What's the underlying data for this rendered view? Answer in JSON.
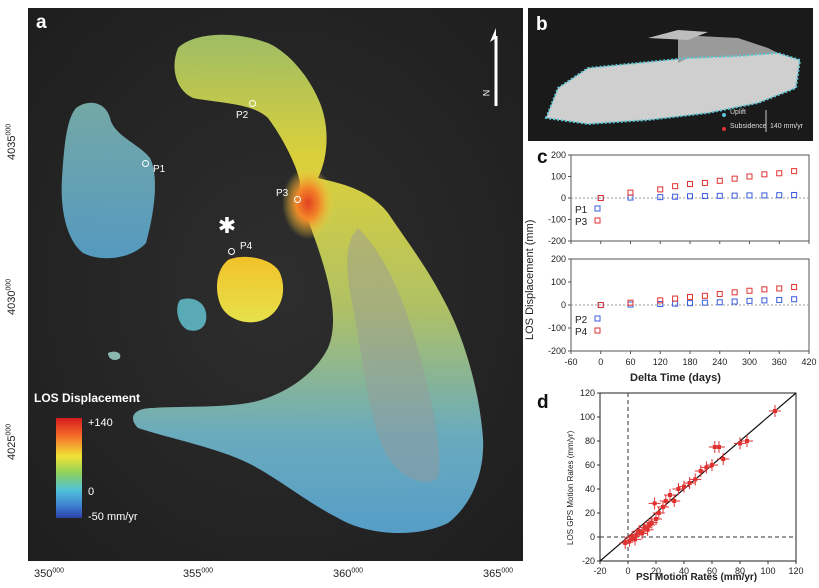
{
  "panel_a": {
    "letter": "a",
    "points": {
      "p1": "P1",
      "p2": "P2",
      "p3": "P3",
      "p4": "P4"
    },
    "north_label": "N",
    "colorbar": {
      "title": "LOS Displacement",
      "max": "+140",
      "zero": "0",
      "min": "-50 mm/yr"
    },
    "x_ticks": [
      {
        "main": "350",
        "sup": "000"
      },
      {
        "main": "355",
        "sup": "000"
      },
      {
        "main": "360",
        "sup": "000"
      },
      {
        "main": "365",
        "sup": "000"
      }
    ],
    "y_ticks": [
      {
        "main": "4035",
        "sup": "000"
      },
      {
        "main": "4030",
        "sup": "000"
      },
      {
        "main": "4025",
        "sup": "000"
      }
    ],
    "colors": {
      "uplift_high": "#d7301f",
      "mid": "#f2d300",
      "low": "#4aa3d6",
      "background": "#2b2b2b"
    }
  },
  "panel_b": {
    "letter": "b",
    "legend_uplift": "Uplift",
    "legend_subsidence": "Subsidence",
    "scale_label": "140 mm/yr"
  },
  "panel_c": {
    "letter": "c",
    "ylabel": "LOS Displacement (mm)",
    "xlabel": "Delta Time (days)",
    "legend_top": [
      "P1",
      "P3"
    ],
    "legend_bottom": [
      "P2",
      "P4"
    ]
  },
  "panel_d": {
    "letter": "d",
    "ylabel": "LOS GPS Motion Rates (mm/yr)",
    "xlabel": "PSI Motion Rates (mm/yr)"
  },
  "chart_data": [
    {
      "type": "scatter",
      "name": "panel-c-top",
      "x_ticks": [
        -60,
        0,
        60,
        120,
        180,
        240,
        300,
        360,
        420
      ],
      "y_ticks": [
        -200,
        -100,
        0,
        100,
        200
      ],
      "xlim": [
        -60,
        420
      ],
      "ylim": [
        -200,
        200
      ],
      "series": [
        {
          "name": "P1",
          "color": "#3b5bdb",
          "x": [
            0,
            60,
            120,
            150,
            180,
            210,
            240,
            270,
            300,
            330,
            360,
            390
          ],
          "y": [
            0,
            2,
            4,
            6,
            8,
            9,
            10,
            11,
            12,
            12,
            13,
            14
          ]
        },
        {
          "name": "P3",
          "color": "#e03131",
          "x": [
            0,
            60,
            120,
            150,
            180,
            210,
            240,
            270,
            300,
            330,
            360,
            390
          ],
          "y": [
            0,
            25,
            40,
            55,
            65,
            70,
            80,
            90,
            100,
            110,
            115,
            125
          ]
        }
      ]
    },
    {
      "type": "scatter",
      "name": "panel-c-bottom",
      "x_ticks": [
        -60,
        0,
        60,
        120,
        180,
        240,
        300,
        360,
        420
      ],
      "y_ticks": [
        -200,
        -100,
        0,
        100,
        200
      ],
      "xlim": [
        -60,
        420
      ],
      "ylim": [
        -200,
        200
      ],
      "series": [
        {
          "name": "P2",
          "color": "#3b5bdb",
          "x": [
            0,
            60,
            120,
            150,
            180,
            210,
            240,
            270,
            300,
            330,
            360,
            390
          ],
          "y": [
            0,
            2,
            4,
            6,
            8,
            10,
            12,
            15,
            18,
            20,
            22,
            25
          ]
        },
        {
          "name": "P4",
          "color": "#e03131",
          "x": [
            0,
            60,
            120,
            150,
            180,
            210,
            240,
            270,
            300,
            330,
            360,
            390
          ],
          "y": [
            0,
            10,
            20,
            28,
            35,
            40,
            48,
            55,
            62,
            68,
            72,
            78
          ]
        }
      ]
    },
    {
      "type": "scatter",
      "name": "panel-d",
      "x_ticks": [
        -20,
        0,
        20,
        40,
        60,
        80,
        100,
        120
      ],
      "y_ticks": [
        -20,
        0,
        20,
        40,
        60,
        80,
        100,
        120
      ],
      "x_tick_labels": [
        "-20",
        "0",
        "20",
        "40",
        "60",
        "80",
        "100",
        "120"
      ],
      "y_tick_labels": [
        "-20",
        "0",
        "20",
        "40",
        "60",
        "80",
        "100",
        "120"
      ],
      "xlim": [
        -20,
        120
      ],
      "ylim": [
        -20,
        120
      ],
      "x": [
        -2,
        1,
        3,
        5,
        6,
        8,
        10,
        12,
        14,
        15,
        17,
        19,
        20,
        22,
        25,
        27,
        30,
        33,
        36,
        40,
        44,
        48,
        52,
        56,
        60,
        62,
        65,
        68,
        80,
        85,
        105
      ],
      "y": [
        -5,
        -3,
        0,
        -2,
        2,
        5,
        3,
        8,
        6,
        10,
        12,
        28,
        15,
        20,
        25,
        30,
        35,
        30,
        40,
        42,
        45,
        48,
        55,
        58,
        60,
        75,
        75,
        65,
        78,
        80,
        105
      ]
    }
  ]
}
